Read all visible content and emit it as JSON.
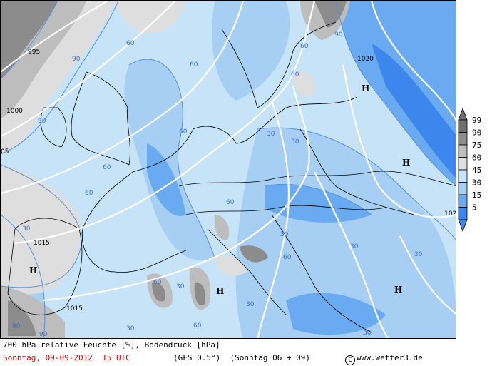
{
  "legend": {
    "levels": [
      {
        "label": "99",
        "color": "#707070"
      },
      {
        "label": "90",
        "color": "#8c8c8c"
      },
      {
        "label": "75",
        "color": "#bdbdbd"
      },
      {
        "label": "60",
        "color": "#dedede"
      },
      {
        "label": "45",
        "color": "#c6e3f7"
      },
      {
        "label": "30",
        "color": "#a6cff3"
      },
      {
        "label": "15",
        "color": "#6aaaf0"
      },
      {
        "label": "5",
        "color": "#3d86ee"
      }
    ]
  },
  "map": {
    "pressure_labels": [
      "995",
      "1000",
      "1015",
      "1015",
      "1020",
      "102",
      "05"
    ],
    "highs": [
      "H",
      "H",
      "H",
      "H",
      "H"
    ],
    "humidity_labels": [
      "60",
      "90",
      "90",
      "60",
      "60",
      "60",
      "60",
      "90",
      "60",
      "60",
      "30",
      "30",
      "30",
      "60",
      "30",
      "30",
      "60",
      "30",
      "30",
      "60",
      "60",
      "30",
      "30",
      "30",
      "90",
      "90"
    ]
  },
  "footer": {
    "caption": "700 hPa relative Feuchte [%], Bodendruck [hPa]",
    "date": "Sonntag, 09-09-2012  15 UTC",
    "model": "(GFS 0.5°)  (Sonntag 06 + 09)",
    "credit": "www.wetter3.de",
    "copyright_symbol": "C"
  }
}
